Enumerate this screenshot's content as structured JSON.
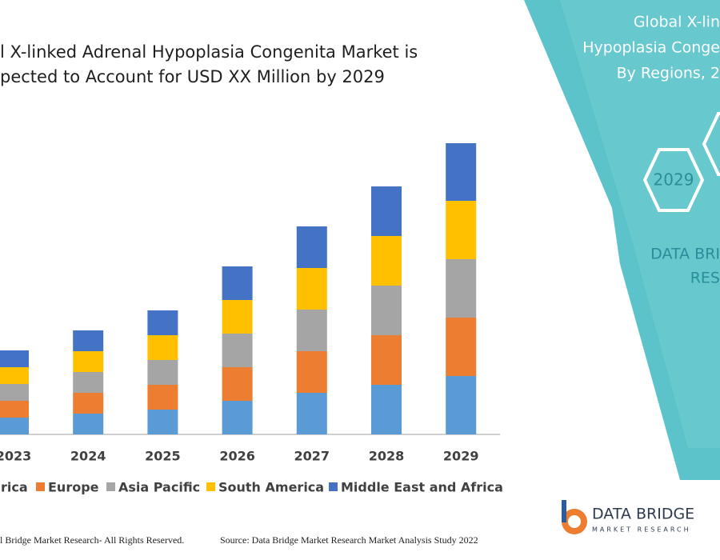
{
  "chart_data": {
    "type": "bar",
    "stacked": true,
    "title_lines": [
      "l X-linked Adrenal Hypoplasia Congenita Market is",
      "pected to Account for USD XX Million by 2029"
    ],
    "categories": [
      "2023",
      "2024",
      "2025",
      "2026",
      "2027",
      "2028",
      "2029"
    ],
    "series": [
      {
        "name": "rica",
        "color": "#5b9bd5",
        "values": [
          21,
          26,
          31,
          42,
          52,
          62,
          73
        ]
      },
      {
        "name": "Europe",
        "color": "#ed7d31",
        "values": [
          21,
          26,
          31,
          42,
          52,
          62,
          73
        ]
      },
      {
        "name": "Asia Pacific",
        "color": "#a5a5a5",
        "values": [
          21,
          26,
          31,
          42,
          52,
          62,
          73
        ]
      },
      {
        "name": "South America",
        "color": "#ffc000",
        "values": [
          21,
          26,
          31,
          42,
          52,
          62,
          73
        ]
      },
      {
        "name": "Middle East and Africa",
        "color": "#4472c4",
        "values": [
          21,
          26,
          31,
          42,
          52,
          62,
          72
        ]
      }
    ]
  },
  "panel": {
    "title_lines": [
      "Global X-lin",
      "Hypoplasia Conge",
      "By Regions, 2"
    ],
    "hexagon_label": "2029",
    "brand_lines": [
      "DATA BRI",
      "RES"
    ]
  },
  "logo": {
    "name": "DATA BRIDGE",
    "tagline": "MARKET RESEARCH"
  },
  "footer": {
    "rights": "l Bridge Market Research- All Rights Reserved.",
    "source": "Source: Data Bridge Market Research Market Analysis Study 2022"
  }
}
